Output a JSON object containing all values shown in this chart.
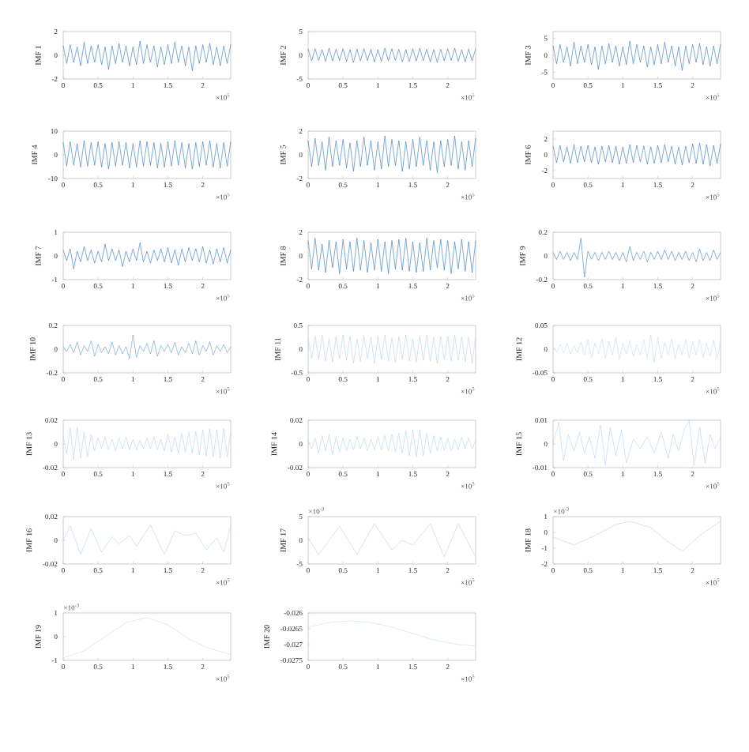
{
  "chart_data": [
    {
      "type": "line",
      "ylabel": "IMF 1",
      "annotations": [
        "×10$^{5}$"
      ],
      "color": "#2a72bd",
      "xlim": [
        0,
        2.4
      ],
      "ylim": [
        -2,
        2
      ],
      "xticks": [
        0,
        0.5,
        1,
        1.5,
        2
      ],
      "yticks": [
        -2,
        0,
        2
      ],
      "x": [
        0,
        0.05,
        0.1,
        0.15,
        0.2,
        0.25,
        0.3,
        0.35,
        0.4,
        0.45,
        0.5,
        0.55,
        0.6,
        0.65,
        0.7,
        0.75,
        0.8,
        0.85,
        0.9,
        0.95,
        1,
        1.05,
        1.1,
        1.15,
        1.2,
        1.25,
        1.3,
        1.35,
        1.4,
        1.45,
        1.5,
        1.55,
        1.6,
        1.65,
        1.7,
        1.75,
        1.8,
        1.85,
        1.9,
        1.95,
        2,
        2.05,
        2.1,
        2.15,
        2.2,
        2.25,
        2.3,
        2.35,
        2.4
      ],
      "values": [
        0.8,
        -0.7,
        0.9,
        -0.6,
        0.7,
        -0.9,
        1.1,
        -0.7,
        0.8,
        -0.6,
        0.9,
        -0.8,
        0.7,
        -1.2,
        0.8,
        -0.7,
        1.0,
        -0.6,
        0.8,
        -0.9,
        0.7,
        -0.8,
        1.2,
        -0.7,
        0.9,
        -0.6,
        0.8,
        -1.0,
        0.7,
        -0.8,
        0.9,
        -0.7,
        1.1,
        -0.6,
        0.8,
        -0.9,
        0.7,
        -1.3,
        0.8,
        -0.7,
        0.9,
        -0.6,
        1.0,
        -0.8,
        0.7,
        -0.9,
        0.8,
        -0.7,
        0.9
      ]
    },
    {
      "type": "line",
      "ylabel": "IMF 2",
      "annotations": [
        "×10$^{5}$"
      ],
      "color": "#2a72bd",
      "xlim": [
        0,
        2.4
      ],
      "ylim": [
        -5,
        5
      ],
      "xticks": [
        0,
        0.5,
        1,
        1.5,
        2
      ],
      "yticks": [
        -5,
        0,
        5
      ],
      "x": [
        0,
        0.05,
        0.1,
        0.15,
        0.2,
        0.25,
        0.3,
        0.35,
        0.4,
        0.45,
        0.5,
        0.55,
        0.6,
        0.65,
        0.7,
        0.75,
        0.8,
        0.85,
        0.9,
        0.95,
        1,
        1.05,
        1.1,
        1.15,
        1.2,
        1.25,
        1.3,
        1.35,
        1.4,
        1.45,
        1.5,
        1.55,
        1.6,
        1.65,
        1.7,
        1.75,
        1.8,
        1.85,
        1.9,
        1.95,
        2,
        2.05,
        2.1,
        2.15,
        2.2,
        2.25,
        2.3,
        2.35,
        2.4
      ],
      "values": [
        1.3,
        -1.2,
        1.4,
        -1.1,
        1.2,
        -1.3,
        1.5,
        -1.2,
        1.3,
        -1.1,
        1.4,
        -1.3,
        1.2,
        -1.5,
        1.3,
        -1.2,
        1.4,
        -1.1,
        1.3,
        -1.4,
        1.2,
        -1.3,
        1.5,
        -1.2,
        1.4,
        -1.1,
        1.3,
        -1.4,
        1.2,
        -1.3,
        1.4,
        -1.2,
        1.5,
        -1.1,
        1.3,
        -1.4,
        1.2,
        -1.5,
        1.3,
        -1.2,
        1.4,
        -1.1,
        1.5,
        -1.3,
        1.2,
        -1.4,
        1.3,
        -1.2,
        1.4
      ]
    },
    {
      "type": "line",
      "ylabel": "IMF 3",
      "annotations": [
        "×10$^{5}$"
      ],
      "color": "#2a72bd",
      "xlim": [
        0,
        2.4
      ],
      "ylim": [
        -7,
        7
      ],
      "xticks": [
        0,
        0.5,
        1,
        1.5,
        2
      ],
      "yticks": [
        -5,
        0,
        5
      ],
      "x": [
        0,
        0.05,
        0.1,
        0.15,
        0.2,
        0.25,
        0.3,
        0.35,
        0.4,
        0.45,
        0.5,
        0.55,
        0.6,
        0.65,
        0.7,
        0.75,
        0.8,
        0.85,
        0.9,
        0.95,
        1,
        1.05,
        1.1,
        1.15,
        1.2,
        1.25,
        1.3,
        1.35,
        1.4,
        1.45,
        1.5,
        1.55,
        1.6,
        1.65,
        1.7,
        1.75,
        1.8,
        1.85,
        1.9,
        1.95,
        2,
        2.05,
        2.1,
        2.15,
        2.2,
        2.25,
        2.3,
        2.35,
        2.4
      ],
      "values": [
        2.8,
        -2.5,
        3.2,
        -2.1,
        2.5,
        -3.2,
        3.9,
        -2.5,
        2.8,
        -2.1,
        3.2,
        -2.8,
        2.5,
        -4.2,
        2.8,
        -2.5,
        3.5,
        -2.1,
        2.8,
        -3.2,
        2.5,
        -2.8,
        4.2,
        -2.5,
        3.2,
        -2.1,
        2.8,
        -3.5,
        2.5,
        -2.8,
        3.2,
        -2.5,
        3.9,
        -2.1,
        2.8,
        -3.2,
        2.5,
        -4.5,
        2.8,
        -2.5,
        3.2,
        -2.1,
        3.5,
        -2.8,
        2.5,
        -3.2,
        2.8,
        -2.5,
        3.2
      ]
    },
    {
      "type": "line",
      "ylabel": "IMF 4",
      "annotations": [
        "×10$^{5}$"
      ],
      "color": "#2a72bd",
      "xlim": [
        0,
        2.4
      ],
      "ylim": [
        -10,
        10
      ],
      "xticks": [
        0,
        0.5,
        1,
        1.5,
        2
      ],
      "yticks": [
        -10,
        0,
        10
      ],
      "x": [
        0,
        0.05,
        0.1,
        0.15,
        0.2,
        0.25,
        0.3,
        0.35,
        0.4,
        0.45,
        0.5,
        0.55,
        0.6,
        0.65,
        0.7,
        0.75,
        0.8,
        0.85,
        0.9,
        0.95,
        1,
        1.05,
        1.1,
        1.15,
        1.2,
        1.25,
        1.3,
        1.35,
        1.4,
        1.45,
        1.5,
        1.55,
        1.6,
        1.65,
        1.7,
        1.75,
        1.8,
        1.85,
        1.9,
        1.95,
        2,
        2.05,
        2.1,
        2.15,
        2.2,
        2.25,
        2.3,
        2.35,
        2.4
      ],
      "values": [
        5.2,
        -4.8,
        5.6,
        -4.4,
        4.8,
        -5.2,
        6.0,
        -4.8,
        5.2,
        -4.4,
        5.6,
        -5.2,
        4.8,
        -6.0,
        5.2,
        -4.8,
        5.6,
        -4.4,
        5.2,
        -5.6,
        4.8,
        -5.2,
        6.0,
        -4.8,
        5.6,
        -4.4,
        5.2,
        -5.6,
        4.8,
        -5.2,
        5.6,
        -4.8,
        6.0,
        -4.4,
        5.2,
        -5.6,
        4.8,
        -6.0,
        5.2,
        -4.8,
        5.6,
        -4.4,
        6.0,
        -5.2,
        4.8,
        -5.6,
        5.2,
        -4.8,
        5.6
      ]
    },
    {
      "type": "line",
      "ylabel": "IMF 5",
      "annotations": [
        "×10$^{5}$"
      ],
      "color": "#2a72bd",
      "xlim": [
        0,
        2.4
      ],
      "ylim": [
        -2,
        2
      ],
      "xticks": [
        0,
        0.5,
        1,
        1.5,
        2
      ],
      "yticks": [
        -2,
        0,
        2
      ],
      "x": [
        0,
        0.05,
        0.1,
        0.15,
        0.2,
        0.25,
        0.3,
        0.35,
        0.4,
        0.45,
        0.5,
        0.55,
        0.6,
        0.65,
        0.7,
        0.75,
        0.8,
        0.85,
        0.9,
        0.95,
        1,
        1.05,
        1.1,
        1.15,
        1.2,
        1.25,
        1.3,
        1.35,
        1.4,
        1.45,
        1.5,
        1.55,
        1.6,
        1.65,
        1.7,
        1.75,
        1.8,
        1.85,
        1.9,
        1.95,
        2,
        2.05,
        2.1,
        2.15,
        2.2,
        2.25,
        2.3,
        2.35,
        2.4
      ],
      "values": [
        1.2,
        -1.0,
        1.4,
        -0.9,
        1.1,
        -1.3,
        1.5,
        -1.0,
        1.2,
        -0.9,
        1.3,
        -1.1,
        1.0,
        -1.4,
        1.2,
        -1.0,
        1.5,
        -0.9,
        1.2,
        -1.3,
        1.1,
        -1.2,
        1.6,
        -1.0,
        1.3,
        -0.9,
        1.2,
        -1.4,
        1.1,
        -1.2,
        1.3,
        -1.0,
        1.5,
        -0.9,
        1.2,
        -1.3,
        1.1,
        -1.5,
        1.2,
        -1.0,
        1.3,
        -0.9,
        1.6,
        -1.2,
        1.1,
        -1.3,
        1.2,
        -1.0,
        1.4
      ]
    },
    {
      "type": "line",
      "ylabel": "IMF 6",
      "annotations": [
        "×10$^{5}$"
      ],
      "color": "#2a72bd",
      "xlim": [
        0,
        2.4
      ],
      "ylim": [
        -3,
        3
      ],
      "xticks": [
        0,
        0.5,
        1,
        1.5,
        2
      ],
      "yticks": [
        -2,
        0,
        2
      ],
      "x": [
        0,
        0.05,
        0.1,
        0.15,
        0.2,
        0.25,
        0.3,
        0.35,
        0.4,
        0.45,
        0.5,
        0.55,
        0.6,
        0.65,
        0.7,
        0.75,
        0.8,
        0.85,
        0.9,
        0.95,
        1,
        1.05,
        1.1,
        1.15,
        1.2,
        1.25,
        1.3,
        1.35,
        1.4,
        1.45,
        1.5,
        1.55,
        1.6,
        1.65,
        1.7,
        1.75,
        1.8,
        1.85,
        1.9,
        1.95,
        2,
        2.05,
        2.1,
        2.15,
        2.2,
        2.25,
        2.3,
        2.35,
        2.4
      ],
      "values": [
        1.1,
        -1.0,
        1.2,
        -0.9,
        1.0,
        -1.1,
        1.3,
        -1.0,
        1.1,
        -0.9,
        1.2,
        -1.0,
        1.0,
        -1.2,
        1.1,
        -0.9,
        1.2,
        -1.0,
        1.1,
        -1.2,
        1.0,
        -1.1,
        1.3,
        -1.0,
        1.2,
        -0.9,
        1.1,
        -1.2,
        1.0,
        -1.1,
        1.2,
        -1.0,
        1.3,
        -0.9,
        1.1,
        -1.2,
        1.0,
        -1.3,
        1.1,
        -1.0,
        1.4,
        -1.1,
        1.5,
        -1.2,
        1.3,
        -1.4,
        1.2,
        -1.1,
        1.4
      ]
    },
    {
      "type": "line",
      "ylabel": "IMF 7",
      "annotations": [
        "×10$^{5}$"
      ],
      "color": "#2a72bd",
      "xlim": [
        0,
        2.4
      ],
      "ylim": [
        -1,
        1
      ],
      "xticks": [
        0,
        0.5,
        1,
        1.5,
        2
      ],
      "yticks": [
        -1,
        0,
        1
      ],
      "x": [
        0,
        0.05,
        0.1,
        0.15,
        0.2,
        0.25,
        0.3,
        0.35,
        0.4,
        0.45,
        0.5,
        0.55,
        0.6,
        0.65,
        0.7,
        0.75,
        0.8,
        0.85,
        0.9,
        0.95,
        1,
        1.05,
        1.1,
        1.15,
        1.2,
        1.25,
        1.3,
        1.35,
        1.4,
        1.45,
        1.5,
        1.55,
        1.6,
        1.65,
        1.7,
        1.75,
        1.8,
        1.85,
        1.9,
        1.95,
        2,
        2.05,
        2.1,
        2.15,
        2.2,
        2.25,
        2.3,
        2.35,
        2.4
      ],
      "values": [
        0.25,
        -0.2,
        0.3,
        -0.55,
        0.2,
        -0.25,
        0.4,
        -0.2,
        0.25,
        -0.3,
        0.2,
        -0.25,
        0.5,
        -0.2,
        0.3,
        -0.2,
        0.25,
        -0.45,
        0.2,
        -0.25,
        0.3,
        -0.2,
        0.55,
        -0.25,
        0.2,
        -0.3,
        0.25,
        -0.2,
        0.3,
        -0.25,
        0.35,
        -0.3,
        0.25,
        -0.4,
        0.3,
        -0.25,
        0.35,
        -0.2,
        0.3,
        -0.25,
        0.4,
        -0.3,
        0.25,
        -0.35,
        0.3,
        -0.25,
        0.35,
        -0.3,
        0.25
      ]
    },
    {
      "type": "line",
      "ylabel": "IMF 8",
      "annotations": [
        "×10$^{5}$"
      ],
      "color": "#2a72bd",
      "xlim": [
        0,
        2.4
      ],
      "ylim": [
        -2,
        2
      ],
      "xticks": [
        0,
        0.5,
        1,
        1.5,
        2
      ],
      "yticks": [
        -2,
        0,
        2
      ],
      "x": [
        0,
        0.05,
        0.1,
        0.15,
        0.2,
        0.25,
        0.3,
        0.35,
        0.4,
        0.45,
        0.5,
        0.55,
        0.6,
        0.65,
        0.7,
        0.75,
        0.8,
        0.85,
        0.9,
        0.95,
        1,
        1.05,
        1.1,
        1.15,
        1.2,
        1.25,
        1.3,
        1.35,
        1.4,
        1.45,
        1.5,
        1.55,
        1.6,
        1.65,
        1.7,
        1.75,
        1.8,
        1.85,
        1.9,
        1.95,
        2,
        2.05,
        2.1,
        2.15,
        2.2,
        2.25,
        2.3,
        2.35,
        2.4
      ],
      "values": [
        1.3,
        -1.1,
        1.5,
        -1.2,
        1.0,
        -1.4,
        1.3,
        -1.0,
        1.2,
        -1.5,
        1.4,
        -1.1,
        1.2,
        -1.3,
        1.5,
        -1.2,
        1.3,
        -1.4,
        1.1,
        -1.2,
        1.4,
        -1.3,
        1.2,
        -1.5,
        1.3,
        -1.1,
        1.4,
        -1.2,
        1.5,
        -1.3,
        1.2,
        -1.4,
        1.1,
        -1.3,
        1.5,
        -1.2,
        1.3,
        -1.0,
        1.4,
        -1.2,
        1.3,
        -1.5,
        1.2,
        -1.1,
        1.4,
        -1.3,
        1.2,
        -1.4,
        1.3
      ]
    },
    {
      "type": "line",
      "ylabel": "IMF 9",
      "annotations": [
        "×10$^{5}$"
      ],
      "color": "#3a80c6",
      "xlim": [
        0,
        2.4
      ],
      "ylim": [
        -0.2,
        0.2
      ],
      "xticks": [
        0,
        0.5,
        1,
        1.5,
        2
      ],
      "yticks": [
        -0.2,
        0,
        0.2
      ],
      "x": [
        0,
        0.05,
        0.1,
        0.15,
        0.2,
        0.25,
        0.3,
        0.35,
        0.4,
        0.45,
        0.5,
        0.55,
        0.6,
        0.65,
        0.7,
        0.75,
        0.8,
        0.85,
        0.9,
        0.95,
        1,
        1.05,
        1.1,
        1.15,
        1.2,
        1.25,
        1.3,
        1.35,
        1.4,
        1.45,
        1.5,
        1.55,
        1.6,
        1.65,
        1.7,
        1.75,
        1.8,
        1.85,
        1.9,
        1.95,
        2,
        2.05,
        2.1,
        2.15,
        2.2,
        2.25,
        2.3,
        2.35,
        2.4
      ],
      "values": [
        0.03,
        -0.03,
        0.04,
        -0.03,
        0.03,
        -0.04,
        0.03,
        -0.03,
        0.15,
        -0.18,
        0.04,
        -0.03,
        0.03,
        -0.04,
        0.03,
        -0.03,
        0.04,
        -0.03,
        0.03,
        -0.04,
        0.03,
        -0.05,
        0.08,
        -0.04,
        0.03,
        -0.03,
        0.04,
        -0.05,
        0.03,
        -0.03,
        0.04,
        -0.03,
        0.05,
        -0.03,
        0.04,
        -0.04,
        0.03,
        -0.03,
        0.04,
        -0.04,
        0.03,
        -0.05,
        0.06,
        -0.04,
        0.03,
        -0.04,
        0.05,
        -0.03,
        0.03
      ]
    },
    {
      "type": "line",
      "ylabel": "IMF 10",
      "annotations": [
        "×10$^{5}$"
      ],
      "color": "#5d9ad2",
      "xlim": [
        0,
        2.4
      ],
      "ylim": [
        -0.2,
        0.2
      ],
      "xticks": [
        0,
        0.5,
        1,
        1.5,
        2
      ],
      "yticks": [
        -0.2,
        0,
        0.2
      ],
      "x": [
        0,
        0.05,
        0.1,
        0.15,
        0.2,
        0.25,
        0.3,
        0.35,
        0.4,
        0.45,
        0.5,
        0.55,
        0.6,
        0.65,
        0.7,
        0.75,
        0.8,
        0.85,
        0.9,
        0.95,
        1,
        1.05,
        1.1,
        1.15,
        1.2,
        1.25,
        1.3,
        1.35,
        1.4,
        1.45,
        1.5,
        1.55,
        1.6,
        1.65,
        1.7,
        1.75,
        1.8,
        1.85,
        1.9,
        1.95,
        2,
        2.05,
        2.1,
        2.15,
        2.2,
        2.25,
        2.3,
        2.35,
        2.4
      ],
      "values": [
        0.02,
        -0.02,
        0.04,
        -0.03,
        0.06,
        -0.05,
        0.03,
        -0.02,
        0.07,
        -0.06,
        0.04,
        -0.03,
        0.02,
        -0.04,
        0.06,
        -0.05,
        0.03,
        -0.04,
        0.02,
        -0.08,
        0.12,
        -0.07,
        0.03,
        -0.02,
        0.05,
        -0.04,
        0.07,
        -0.06,
        0.03,
        -0.02,
        0.04,
        -0.03,
        0.06,
        -0.05,
        0.02,
        -0.03,
        0.05,
        -0.04,
        0.07,
        -0.05,
        0.03,
        -0.02,
        0.06,
        -0.05,
        0.03,
        -0.02,
        0.04,
        -0.03,
        0.02
      ]
    },
    {
      "type": "line",
      "ylabel": "IMF 11",
      "annotations": [
        "×10$^{5}$"
      ],
      "color": "#b4d2ee",
      "xlim": [
        0,
        2.4
      ],
      "ylim": [
        -0.5,
        0.5
      ],
      "xticks": [
        0,
        0.5,
        1,
        1.5,
        2
      ],
      "yticks": [
        -0.5,
        0,
        0.5
      ],
      "x": [
        0,
        0.05,
        0.1,
        0.15,
        0.2,
        0.25,
        0.3,
        0.35,
        0.4,
        0.45,
        0.5,
        0.55,
        0.6,
        0.65,
        0.7,
        0.75,
        0.8,
        0.85,
        0.9,
        0.95,
        1,
        1.05,
        1.1,
        1.15,
        1.2,
        1.25,
        1.3,
        1.35,
        1.4,
        1.45,
        1.5,
        1.55,
        1.6,
        1.65,
        1.7,
        1.75,
        1.8,
        1.85,
        1.9,
        1.95,
        2,
        2.05,
        2.1,
        2.15,
        2.2,
        2.25,
        2.3,
        2.35,
        2.4
      ],
      "values": [
        0.25,
        -0.2,
        0.28,
        -0.22,
        0.3,
        -0.25,
        0.22,
        -0.28,
        0.26,
        -0.2,
        0.3,
        -0.24,
        0.27,
        -0.3,
        0.22,
        -0.26,
        0.28,
        -0.2,
        0.25,
        -0.3,
        0.27,
        -0.22,
        0.3,
        -0.25,
        0.24,
        -0.28,
        0.26,
        -0.22,
        0.3,
        -0.25,
        0.22,
        -0.27,
        0.28,
        -0.24,
        0.3,
        -0.26,
        0.25,
        -0.3,
        0.27,
        -0.22,
        0.28,
        -0.25,
        0.3,
        -0.24,
        0.26,
        -0.28,
        0.25,
        -0.3,
        0.27
      ]
    },
    {
      "type": "line",
      "ylabel": "IMF 12",
      "annotations": [
        "×10$^{5}$"
      ],
      "color": "#c2daf0",
      "xlim": [
        0,
        2.4
      ],
      "ylim": [
        -0.05,
        0.05
      ],
      "xticks": [
        0,
        0.5,
        1,
        1.5,
        2
      ],
      "yticks": [
        -0.05,
        0,
        0.05
      ],
      "x": [
        0,
        0.05,
        0.1,
        0.15,
        0.2,
        0.25,
        0.3,
        0.35,
        0.4,
        0.45,
        0.5,
        0.55,
        0.6,
        0.65,
        0.7,
        0.75,
        0.8,
        0.85,
        0.9,
        0.95,
        1,
        1.05,
        1.1,
        1.15,
        1.2,
        1.25,
        1.3,
        1.35,
        1.4,
        1.45,
        1.5,
        1.55,
        1.6,
        1.65,
        1.7,
        1.75,
        1.8,
        1.85,
        1.9,
        1.95,
        2,
        2.05,
        2.1,
        2.15,
        2.2,
        2.25,
        2.3,
        2.35,
        2.4
      ],
      "values": [
        0.005,
        -0.006,
        0.01,
        -0.008,
        0.012,
        -0.01,
        0.007,
        -0.008,
        0.015,
        -0.012,
        0.02,
        -0.018,
        0.012,
        -0.01,
        0.022,
        -0.02,
        0.015,
        -0.012,
        0.025,
        -0.022,
        0.012,
        -0.01,
        0.018,
        -0.015,
        0.01,
        -0.012,
        0.02,
        -0.018,
        0.03,
        -0.028,
        0.025,
        -0.02,
        0.015,
        -0.012,
        0.022,
        -0.02,
        0.01,
        -0.012,
        0.02,
        -0.018,
        0.015,
        -0.012,
        0.02,
        -0.018,
        0.012,
        -0.015,
        0.018,
        -0.02,
        0.015
      ]
    },
    {
      "type": "line",
      "ylabel": "IMF 13",
      "annotations": [
        "×10$^{5}$"
      ],
      "color": "#b4d2ee",
      "xlim": [
        0,
        2.4
      ],
      "ylim": [
        -0.02,
        0.02
      ],
      "xticks": [
        0,
        0.5,
        1,
        1.5,
        2
      ],
      "yticks": [
        -0.02,
        0,
        0.02
      ],
      "x": [
        0,
        0.05,
        0.1,
        0.15,
        0.2,
        0.25,
        0.3,
        0.35,
        0.4,
        0.45,
        0.5,
        0.55,
        0.6,
        0.65,
        0.7,
        0.75,
        0.8,
        0.85,
        0.9,
        0.95,
        1,
        1.05,
        1.1,
        1.15,
        1.2,
        1.25,
        1.3,
        1.35,
        1.4,
        1.45,
        1.5,
        1.55,
        1.6,
        1.65,
        1.7,
        1.75,
        1.8,
        1.85,
        1.9,
        1.95,
        2,
        2.05,
        2.1,
        2.15,
        2.2,
        2.25,
        2.3,
        2.35,
        2.4
      ],
      "values": [
        0.006,
        -0.008,
        0.014,
        -0.013,
        0.014,
        -0.012,
        0.01,
        -0.011,
        0.008,
        -0.006,
        0.005,
        -0.004,
        0.006,
        -0.005,
        0.004,
        -0.006,
        0.005,
        -0.004,
        0.006,
        -0.005,
        0.004,
        -0.005,
        0.003,
        -0.004,
        0.005,
        -0.004,
        0.006,
        -0.005,
        0.004,
        -0.006,
        0.008,
        -0.007,
        0.006,
        -0.008,
        0.009,
        -0.007,
        0.01,
        -0.008,
        0.011,
        -0.009,
        0.012,
        -0.01,
        0.013,
        -0.011,
        0.012,
        -0.012,
        0.013,
        -0.011,
        0.01
      ]
    },
    {
      "type": "line",
      "ylabel": "IMF 14",
      "annotations": [
        "×10$^{5}$"
      ],
      "color": "#b4d2ee",
      "xlim": [
        0,
        2.4
      ],
      "ylim": [
        -0.02,
        0.02
      ],
      "xticks": [
        0,
        0.5,
        1,
        1.5,
        2
      ],
      "yticks": [
        -0.02,
        0,
        0.02
      ],
      "x": [
        0,
        0.05,
        0.1,
        0.15,
        0.2,
        0.25,
        0.3,
        0.35,
        0.4,
        0.45,
        0.5,
        0.55,
        0.6,
        0.65,
        0.7,
        0.75,
        0.8,
        0.85,
        0.9,
        0.95,
        1,
        1.05,
        1.1,
        1.15,
        1.2,
        1.25,
        1.3,
        1.35,
        1.4,
        1.45,
        1.5,
        1.55,
        1.6,
        1.65,
        1.7,
        1.75,
        1.8,
        1.85,
        1.9,
        1.95,
        2,
        2.05,
        2.1,
        2.15,
        2.2,
        2.25,
        2.3,
        2.35,
        2.4
      ],
      "values": [
        0.003,
        -0.004,
        0.005,
        -0.008,
        0.007,
        -0.006,
        0.008,
        -0.009,
        0.006,
        -0.007,
        0.005,
        -0.006,
        0.004,
        -0.005,
        0.006,
        -0.004,
        0.005,
        -0.006,
        0.004,
        -0.005,
        0.006,
        -0.005,
        0.007,
        -0.006,
        0.008,
        -0.007,
        0.009,
        -0.008,
        0.011,
        -0.01,
        0.012,
        -0.011,
        0.012,
        -0.01,
        0.009,
        -0.008,
        0.007,
        -0.006,
        0.006,
        -0.005,
        0.005,
        -0.006,
        0.004,
        -0.005,
        0.006,
        -0.004,
        0.005,
        -0.004,
        0.003
      ]
    },
    {
      "type": "line",
      "ylabel": "IMF 15",
      "annotations": [
        "×10$^{5}$"
      ],
      "color": "#b4d2ee",
      "xlim": [
        0,
        2.4
      ],
      "ylim": [
        -0.01,
        0.01
      ],
      "xticks": [
        0,
        0.5,
        1,
        1.5,
        2
      ],
      "yticks": [
        -0.01,
        0,
        0.01
      ],
      "x": [
        0,
        0.08,
        0.15,
        0.22,
        0.3,
        0.38,
        0.45,
        0.52,
        0.6,
        0.68,
        0.75,
        0.82,
        0.9,
        0.98,
        1.05,
        1.15,
        1.25,
        1.35,
        1.45,
        1.55,
        1.65,
        1.72,
        1.8,
        1.88,
        1.95,
        2.02,
        2.1,
        2.18,
        2.25,
        2.32,
        2.4
      ],
      "values": [
        0,
        0.009,
        -0.007,
        0.004,
        -0.003,
        0.005,
        -0.004,
        0.003,
        -0.006,
        0.008,
        -0.009,
        0.007,
        -0.005,
        0.006,
        -0.008,
        0.002,
        -0.002,
        0.003,
        -0.004,
        0.005,
        -0.006,
        0.004,
        -0.003,
        0.006,
        0.01,
        -0.009,
        0.007,
        -0.008,
        0.004,
        -0.002,
        0.003
      ]
    },
    {
      "type": "line",
      "ylabel": "IMF 16",
      "annotations": [
        "×10$^{5}$"
      ],
      "color": "#b4d2ee",
      "xlim": [
        0,
        2.4
      ],
      "ylim": [
        -0.02,
        0.02
      ],
      "xticks": [
        0,
        0.5,
        1,
        1.5,
        2
      ],
      "yticks": [
        -0.02,
        0,
        0.02
      ],
      "x": [
        0,
        0.1,
        0.25,
        0.4,
        0.55,
        0.7,
        0.8,
        0.95,
        1.05,
        1.25,
        1.45,
        1.6,
        1.75,
        1.9,
        2.05,
        2.2,
        2.3,
        2.4
      ],
      "values": [
        0,
        0.012,
        -0.012,
        0.01,
        -0.01,
        0.003,
        -0.003,
        0.004,
        -0.005,
        0.013,
        -0.012,
        0.008,
        0.004,
        0.006,
        -0.008,
        0.002,
        -0.01,
        0.012
      ]
    },
    {
      "type": "line",
      "ylabel": "IMF 17",
      "annotations": [
        "×10$^{-3}$",
        "×10$^{5}$"
      ],
      "color": "#b4d2ee",
      "xlim": [
        0,
        2.4
      ],
      "ylim": [
        -5,
        5
      ],
      "xticks": [
        0,
        0.5,
        1,
        1.5,
        2
      ],
      "yticks": [
        -5,
        0,
        5
      ],
      "x": [
        0,
        0.15,
        0.45,
        0.7,
        0.95,
        1.2,
        1.35,
        1.5,
        1.75,
        1.95,
        2.15,
        2.4
      ],
      "values": [
        0.5,
        -3,
        3,
        -3,
        3.5,
        -2,
        0,
        -1,
        3.5,
        -3.5,
        3.5,
        -3.5
      ]
    },
    {
      "type": "line",
      "ylabel": "IMF 18",
      "annotations": [
        "×10$^{-3}$",
        "×10$^{5}$"
      ],
      "color": "#b4d2ee",
      "xlim": [
        0,
        2.4
      ],
      "ylim": [
        -2,
        1
      ],
      "xticks": [
        0,
        0.5,
        1,
        1.5,
        2
      ],
      "yticks": [
        -2,
        -1,
        0,
        1
      ],
      "x": [
        0,
        0.3,
        0.6,
        0.9,
        1.1,
        1.4,
        1.65,
        1.85,
        2.1,
        2.4
      ],
      "values": [
        -0.3,
        -0.8,
        -0.2,
        0.5,
        0.7,
        0.3,
        -0.6,
        -1.2,
        -0.2,
        0.7
      ]
    },
    {
      "type": "line",
      "ylabel": "IMF 19",
      "annotations": [
        "×10$^{-3}$",
        "×10$^{5}$"
      ],
      "color": "#c2daf0",
      "xlim": [
        0,
        2.4
      ],
      "ylim": [
        -1,
        1
      ],
      "xticks": [
        0,
        0.5,
        1,
        1.5,
        2
      ],
      "yticks": [
        -1,
        0,
        1
      ],
      "x": [
        0,
        0.3,
        0.6,
        0.9,
        1.2,
        1.5,
        1.8,
        2.1,
        2.4
      ],
      "values": [
        -0.9,
        -0.6,
        0.0,
        0.6,
        0.8,
        0.5,
        -0.1,
        -0.5,
        -0.75
      ]
    },
    {
      "type": "line",
      "ylabel": "IMF 20",
      "annotations": [
        "×10$^{5}$"
      ],
      "color": "#c2daf0",
      "xlim": [
        0,
        2.4
      ],
      "ylim": [
        -0.0275,
        -0.026
      ],
      "xticks": [
        0,
        0.5,
        1,
        1.5,
        2
      ],
      "yticks": [
        -0.0275,
        -0.027,
        -0.0265,
        -0.026
      ],
      "x": [
        0,
        0.3,
        0.6,
        0.9,
        1.2,
        1.5,
        1.8,
        2.1,
        2.4
      ],
      "values": [
        -0.02645,
        -0.0263,
        -0.02625,
        -0.0263,
        -0.02645,
        -0.02665,
        -0.02685,
        -0.02698,
        -0.02705
      ]
    }
  ]
}
